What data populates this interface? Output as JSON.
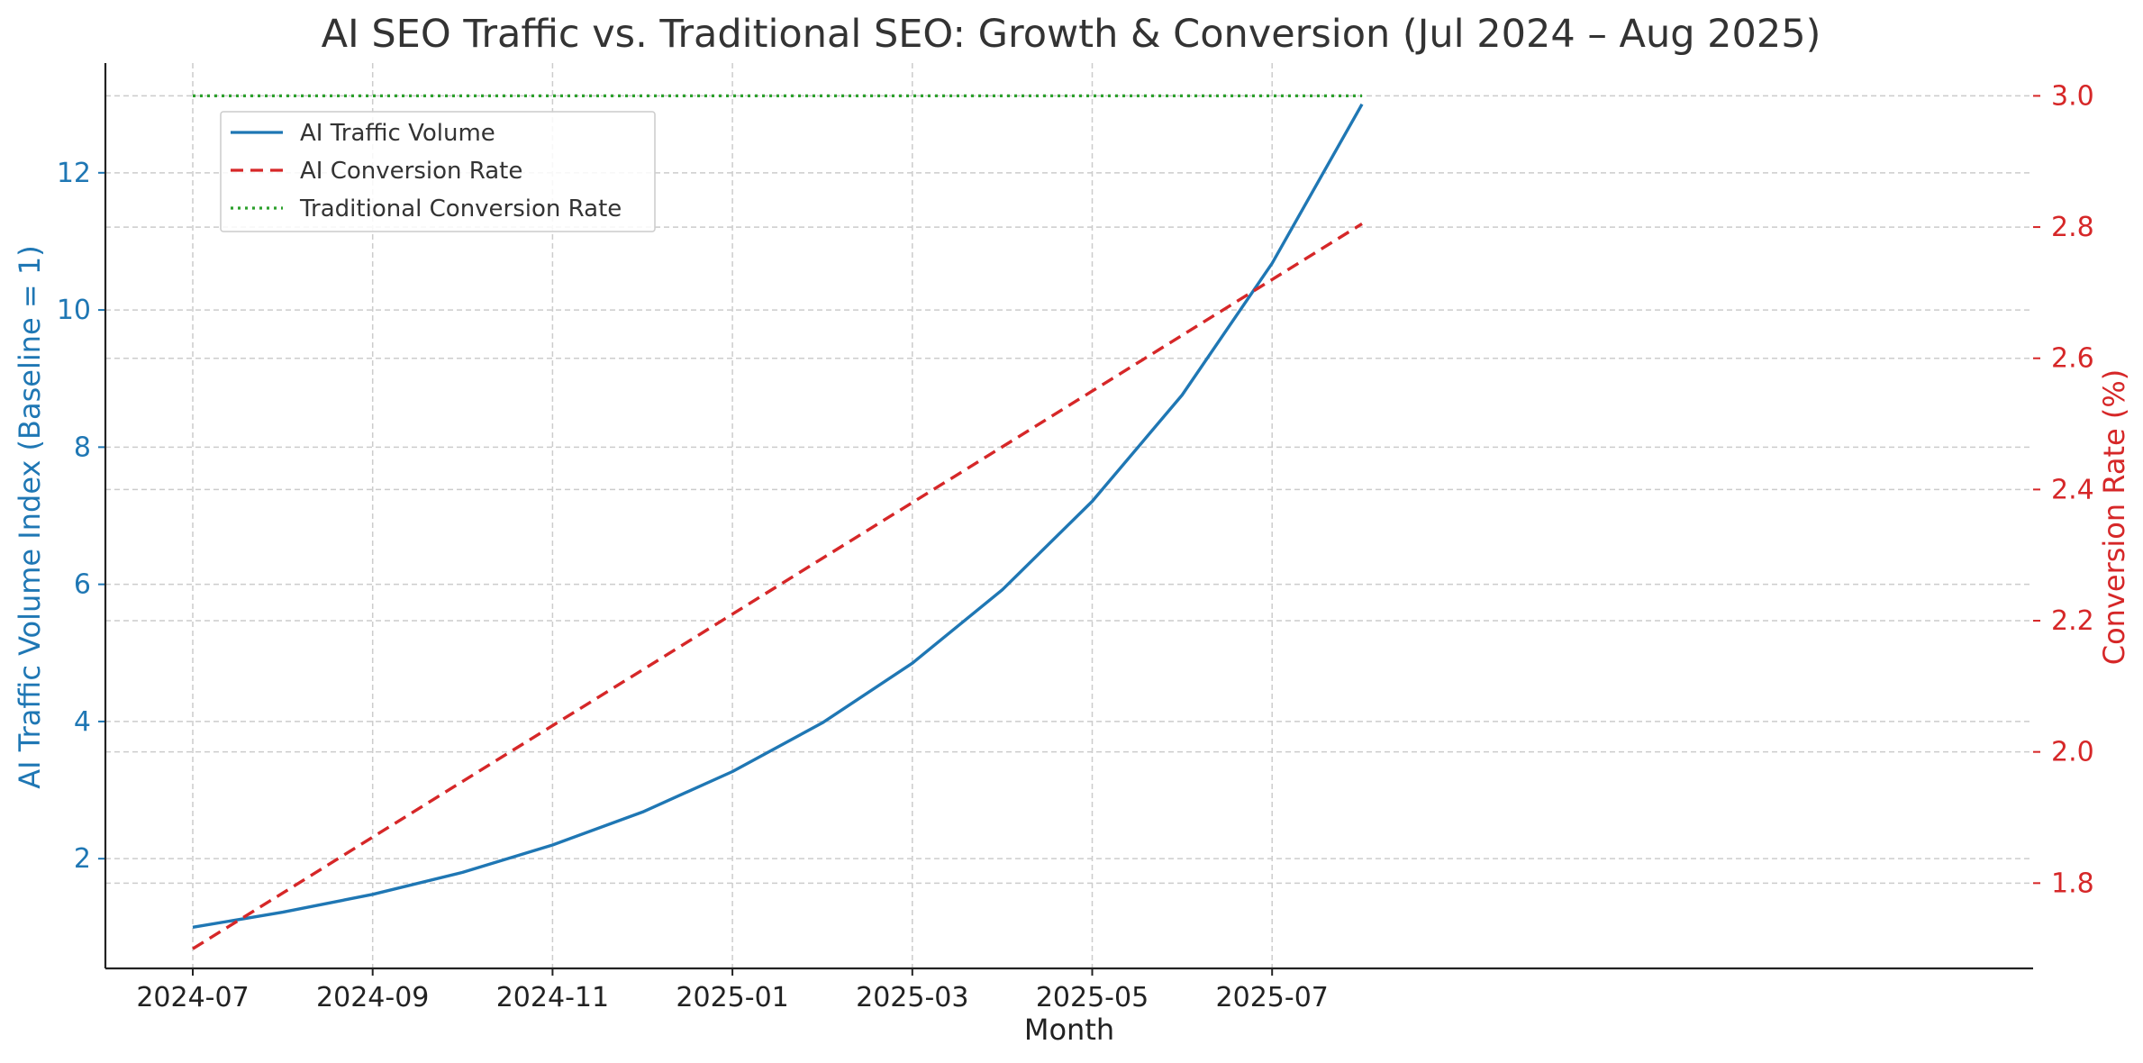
{
  "chart_data": {
    "type": "line",
    "title": "AI SEO Traffic vs. Traditional SEO: Growth & Conversion (Jul 2024 – Aug 2025)",
    "xlabel": "Month",
    "ylabel_left": "AI Traffic Volume Index (Baseline = 1)",
    "ylabel_right": "Conversion Rate (%)",
    "x": [
      "2024-07",
      "2024-08",
      "2024-09",
      "2024-10",
      "2024-11",
      "2024-12",
      "2025-01",
      "2025-02",
      "2025-03",
      "2025-04",
      "2025-05",
      "2025-06",
      "2025-07",
      "2025-08"
    ],
    "x_ticks": [
      "2024-07",
      "2024-09",
      "2024-11",
      "2025-01",
      "2025-03",
      "2025-05",
      "2025-07"
    ],
    "y_left_ticks": [
      "2",
      "4",
      "6",
      "8",
      "10",
      "12"
    ],
    "y_right_ticks": [
      "1.8",
      "2.0",
      "2.2",
      "2.4",
      "2.6",
      "2.8",
      "3.0"
    ],
    "ylim_left": [
      0.4,
      13.6
    ],
    "ylim_right": [
      1.67,
      3.05
    ],
    "grid": true,
    "legend_position": "upper-left",
    "series": [
      {
        "name": "AI Traffic Volume",
        "axis": "left",
        "style": "solid",
        "color": "#1f77b4",
        "values": [
          1.0,
          1.22,
          1.48,
          1.8,
          2.2,
          2.68,
          3.27,
          3.98,
          4.85,
          5.92,
          7.21,
          8.76,
          10.68,
          13.0
        ]
      },
      {
        "name": "AI Conversion Rate",
        "axis": "right",
        "style": "dashed",
        "color": "#d62728",
        "values": [
          1.7,
          1.785,
          1.87,
          1.955,
          2.04,
          2.125,
          2.21,
          2.295,
          2.38,
          2.465,
          2.55,
          2.635,
          2.72,
          2.805
        ]
      },
      {
        "name": "Traditional Conversion Rate",
        "axis": "right",
        "style": "dotted",
        "color": "#2ca02c",
        "values": [
          3.0,
          3.0,
          3.0,
          3.0,
          3.0,
          3.0,
          3.0,
          3.0,
          3.0,
          3.0,
          3.0,
          3.0,
          3.0,
          3.0
        ]
      }
    ],
    "colors": {
      "left_axis": "#1f77b4",
      "right_axis": "#d62728",
      "text": "#333333",
      "grid": "#cccccc"
    }
  }
}
